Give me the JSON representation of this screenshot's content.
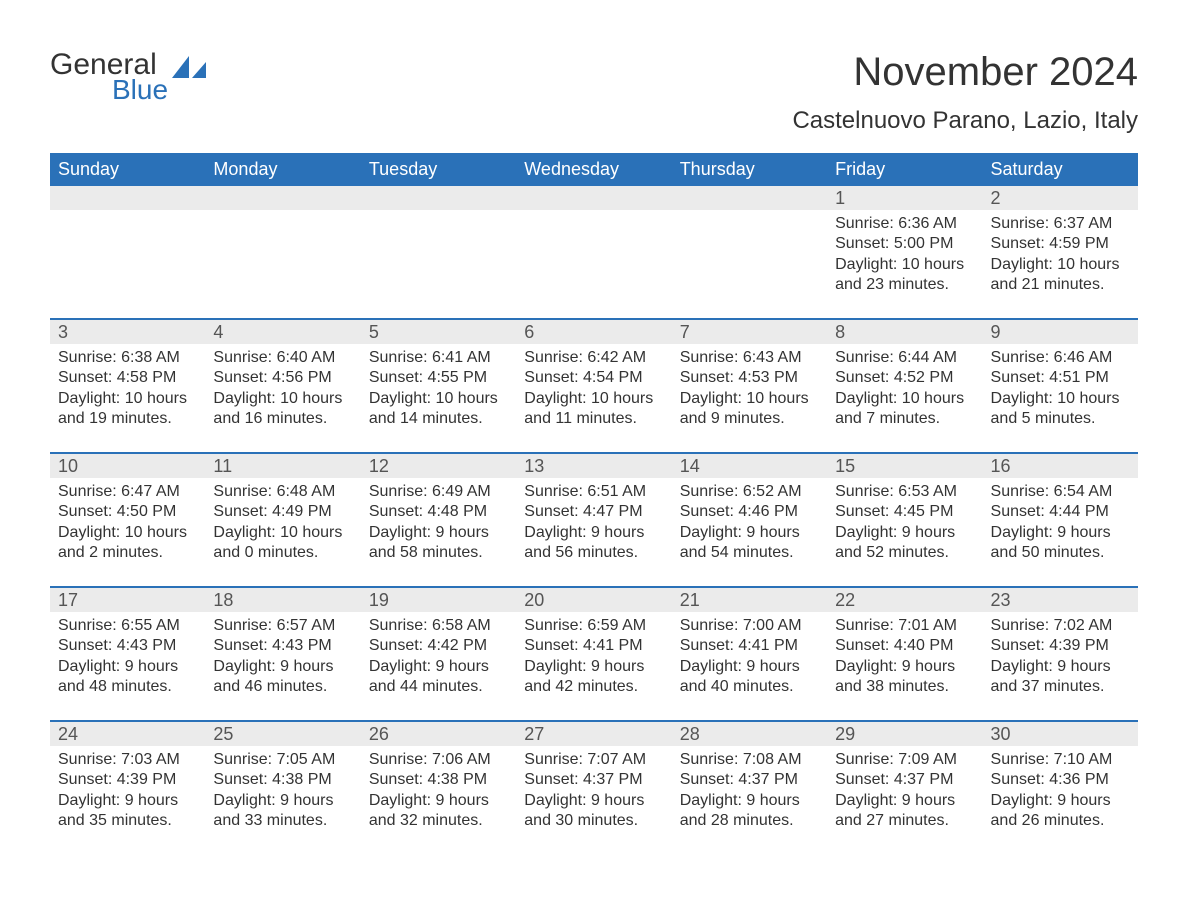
{
  "logo": {
    "text1": "General",
    "text2": "Blue",
    "icon_color": "#2a71b8"
  },
  "title": "November 2024",
  "location": "Castelnuovo Parano, Lazio, Italy",
  "colors": {
    "header_bg": "#2a71b8",
    "header_text": "#ffffff",
    "daynum_bg": "#ebebeb",
    "text": "#333333",
    "border": "#2a71b8"
  },
  "day_headers": [
    "Sunday",
    "Monday",
    "Tuesday",
    "Wednesday",
    "Thursday",
    "Friday",
    "Saturday"
  ],
  "weeks": [
    [
      null,
      null,
      null,
      null,
      null,
      {
        "n": "1",
        "sunrise": "Sunrise: 6:36 AM",
        "sunset": "Sunset: 5:00 PM",
        "daylight": "Daylight: 10 hours and 23 minutes."
      },
      {
        "n": "2",
        "sunrise": "Sunrise: 6:37 AM",
        "sunset": "Sunset: 4:59 PM",
        "daylight": "Daylight: 10 hours and 21 minutes."
      }
    ],
    [
      {
        "n": "3",
        "sunrise": "Sunrise: 6:38 AM",
        "sunset": "Sunset: 4:58 PM",
        "daylight": "Daylight: 10 hours and 19 minutes."
      },
      {
        "n": "4",
        "sunrise": "Sunrise: 6:40 AM",
        "sunset": "Sunset: 4:56 PM",
        "daylight": "Daylight: 10 hours and 16 minutes."
      },
      {
        "n": "5",
        "sunrise": "Sunrise: 6:41 AM",
        "sunset": "Sunset: 4:55 PM",
        "daylight": "Daylight: 10 hours and 14 minutes."
      },
      {
        "n": "6",
        "sunrise": "Sunrise: 6:42 AM",
        "sunset": "Sunset: 4:54 PM",
        "daylight": "Daylight: 10 hours and 11 minutes."
      },
      {
        "n": "7",
        "sunrise": "Sunrise: 6:43 AM",
        "sunset": "Sunset: 4:53 PM",
        "daylight": "Daylight: 10 hours and 9 minutes."
      },
      {
        "n": "8",
        "sunrise": "Sunrise: 6:44 AM",
        "sunset": "Sunset: 4:52 PM",
        "daylight": "Daylight: 10 hours and 7 minutes."
      },
      {
        "n": "9",
        "sunrise": "Sunrise: 6:46 AM",
        "sunset": "Sunset: 4:51 PM",
        "daylight": "Daylight: 10 hours and 5 minutes."
      }
    ],
    [
      {
        "n": "10",
        "sunrise": "Sunrise: 6:47 AM",
        "sunset": "Sunset: 4:50 PM",
        "daylight": "Daylight: 10 hours and 2 minutes."
      },
      {
        "n": "11",
        "sunrise": "Sunrise: 6:48 AM",
        "sunset": "Sunset: 4:49 PM",
        "daylight": "Daylight: 10 hours and 0 minutes."
      },
      {
        "n": "12",
        "sunrise": "Sunrise: 6:49 AM",
        "sunset": "Sunset: 4:48 PM",
        "daylight": "Daylight: 9 hours and 58 minutes."
      },
      {
        "n": "13",
        "sunrise": "Sunrise: 6:51 AM",
        "sunset": "Sunset: 4:47 PM",
        "daylight": "Daylight: 9 hours and 56 minutes."
      },
      {
        "n": "14",
        "sunrise": "Sunrise: 6:52 AM",
        "sunset": "Sunset: 4:46 PM",
        "daylight": "Daylight: 9 hours and 54 minutes."
      },
      {
        "n": "15",
        "sunrise": "Sunrise: 6:53 AM",
        "sunset": "Sunset: 4:45 PM",
        "daylight": "Daylight: 9 hours and 52 minutes."
      },
      {
        "n": "16",
        "sunrise": "Sunrise: 6:54 AM",
        "sunset": "Sunset: 4:44 PM",
        "daylight": "Daylight: 9 hours and 50 minutes."
      }
    ],
    [
      {
        "n": "17",
        "sunrise": "Sunrise: 6:55 AM",
        "sunset": "Sunset: 4:43 PM",
        "daylight": "Daylight: 9 hours and 48 minutes."
      },
      {
        "n": "18",
        "sunrise": "Sunrise: 6:57 AM",
        "sunset": "Sunset: 4:43 PM",
        "daylight": "Daylight: 9 hours and 46 minutes."
      },
      {
        "n": "19",
        "sunrise": "Sunrise: 6:58 AM",
        "sunset": "Sunset: 4:42 PM",
        "daylight": "Daylight: 9 hours and 44 minutes."
      },
      {
        "n": "20",
        "sunrise": "Sunrise: 6:59 AM",
        "sunset": "Sunset: 4:41 PM",
        "daylight": "Daylight: 9 hours and 42 minutes."
      },
      {
        "n": "21",
        "sunrise": "Sunrise: 7:00 AM",
        "sunset": "Sunset: 4:41 PM",
        "daylight": "Daylight: 9 hours and 40 minutes."
      },
      {
        "n": "22",
        "sunrise": "Sunrise: 7:01 AM",
        "sunset": "Sunset: 4:40 PM",
        "daylight": "Daylight: 9 hours and 38 minutes."
      },
      {
        "n": "23",
        "sunrise": "Sunrise: 7:02 AM",
        "sunset": "Sunset: 4:39 PM",
        "daylight": "Daylight: 9 hours and 37 minutes."
      }
    ],
    [
      {
        "n": "24",
        "sunrise": "Sunrise: 7:03 AM",
        "sunset": "Sunset: 4:39 PM",
        "daylight": "Daylight: 9 hours and 35 minutes."
      },
      {
        "n": "25",
        "sunrise": "Sunrise: 7:05 AM",
        "sunset": "Sunset: 4:38 PM",
        "daylight": "Daylight: 9 hours and 33 minutes."
      },
      {
        "n": "26",
        "sunrise": "Sunrise: 7:06 AM",
        "sunset": "Sunset: 4:38 PM",
        "daylight": "Daylight: 9 hours and 32 minutes."
      },
      {
        "n": "27",
        "sunrise": "Sunrise: 7:07 AM",
        "sunset": "Sunset: 4:37 PM",
        "daylight": "Daylight: 9 hours and 30 minutes."
      },
      {
        "n": "28",
        "sunrise": "Sunrise: 7:08 AM",
        "sunset": "Sunset: 4:37 PM",
        "daylight": "Daylight: 9 hours and 28 minutes."
      },
      {
        "n": "29",
        "sunrise": "Sunrise: 7:09 AM",
        "sunset": "Sunset: 4:37 PM",
        "daylight": "Daylight: 9 hours and 27 minutes."
      },
      {
        "n": "30",
        "sunrise": "Sunrise: 7:10 AM",
        "sunset": "Sunset: 4:36 PM",
        "daylight": "Daylight: 9 hours and 26 minutes."
      }
    ]
  ]
}
